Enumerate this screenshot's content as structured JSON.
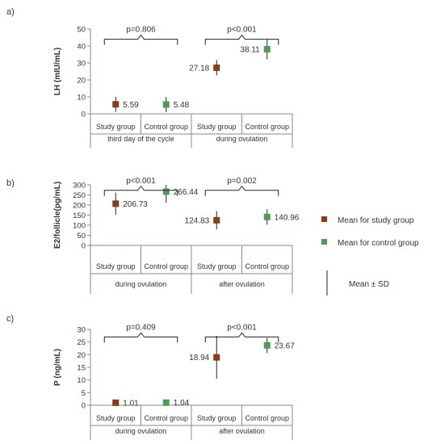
{
  "colors": {
    "study": "#8B3A1A",
    "control": "#4E9A5A",
    "axis": "#8a8a8a",
    "text": "#333333",
    "error": "#222222"
  },
  "legend": {
    "study_label": "Mean for study group",
    "control_label": "Mean for control group",
    "sd_label": "Mean ± SD"
  },
  "chart_data": [
    {
      "panel": "a)",
      "type": "scatter",
      "ylabel": "LH (mIU/mL)",
      "ylim": [
        0,
        50
      ],
      "yticks": [
        0,
        10,
        20,
        30,
        40,
        50
      ],
      "groups": [
        "Study group",
        "Control group",
        "Study group",
        "Control group"
      ],
      "periods": [
        "third day of the cycle",
        "during ovulation"
      ],
      "means": [
        5.59,
        5.48,
        27.18,
        38.11
      ],
      "sd": [
        4.5,
        4.5,
        4.5,
        6.0
      ],
      "labels": [
        "5.59",
        "5.48",
        "27.18",
        "38.11"
      ],
      "label_side": [
        "right",
        "right",
        "left",
        "left"
      ],
      "pvalues": [
        "p=0.806",
        "p<0.001"
      ],
      "bracket_y": 44
    },
    {
      "panel": "b)",
      "type": "scatter",
      "ylabel": "E2/follicle(pg/mL)",
      "ylim": [
        0,
        300
      ],
      "yticks": [
        0,
        50,
        100,
        150,
        200,
        250,
        300
      ],
      "groups": [
        "Study group",
        "Control group",
        "Study group",
        "Control group"
      ],
      "periods": [
        "during ovulation",
        "after ovulation"
      ],
      "means": [
        206.73,
        266.44,
        124.83,
        140.96
      ],
      "sd": [
        55,
        55,
        45,
        38
      ],
      "labels": [
        "206.73",
        "266.44",
        "124.83",
        "140.96"
      ],
      "label_side": [
        "right",
        "right",
        "left",
        "right"
      ],
      "pvalues": [
        "p<0.001",
        "p=0.002"
      ],
      "bracket_y": 273
    },
    {
      "panel": "c)",
      "type": "scatter",
      "ylabel": "P (ng/mL)",
      "ylim": [
        0,
        30
      ],
      "yticks": [
        0,
        5,
        10,
        15,
        20,
        25,
        30
      ],
      "groups": [
        "Study group",
        "Control group",
        "Study group",
        "Control group"
      ],
      "periods": [
        "during ovulation",
        "after ovulation"
      ],
      "means": [
        1.01,
        1.04,
        18.94,
        23.67
      ],
      "sd": [
        0.8,
        0.8,
        8.5,
        3.0
      ],
      "labels": [
        "1.01",
        "1.04",
        "18.94",
        "23.67"
      ],
      "label_side": [
        "right",
        "right",
        "left",
        "right"
      ],
      "pvalues": [
        "p=0.409",
        "p<0.001"
      ],
      "bracket_y": 27
    }
  ]
}
